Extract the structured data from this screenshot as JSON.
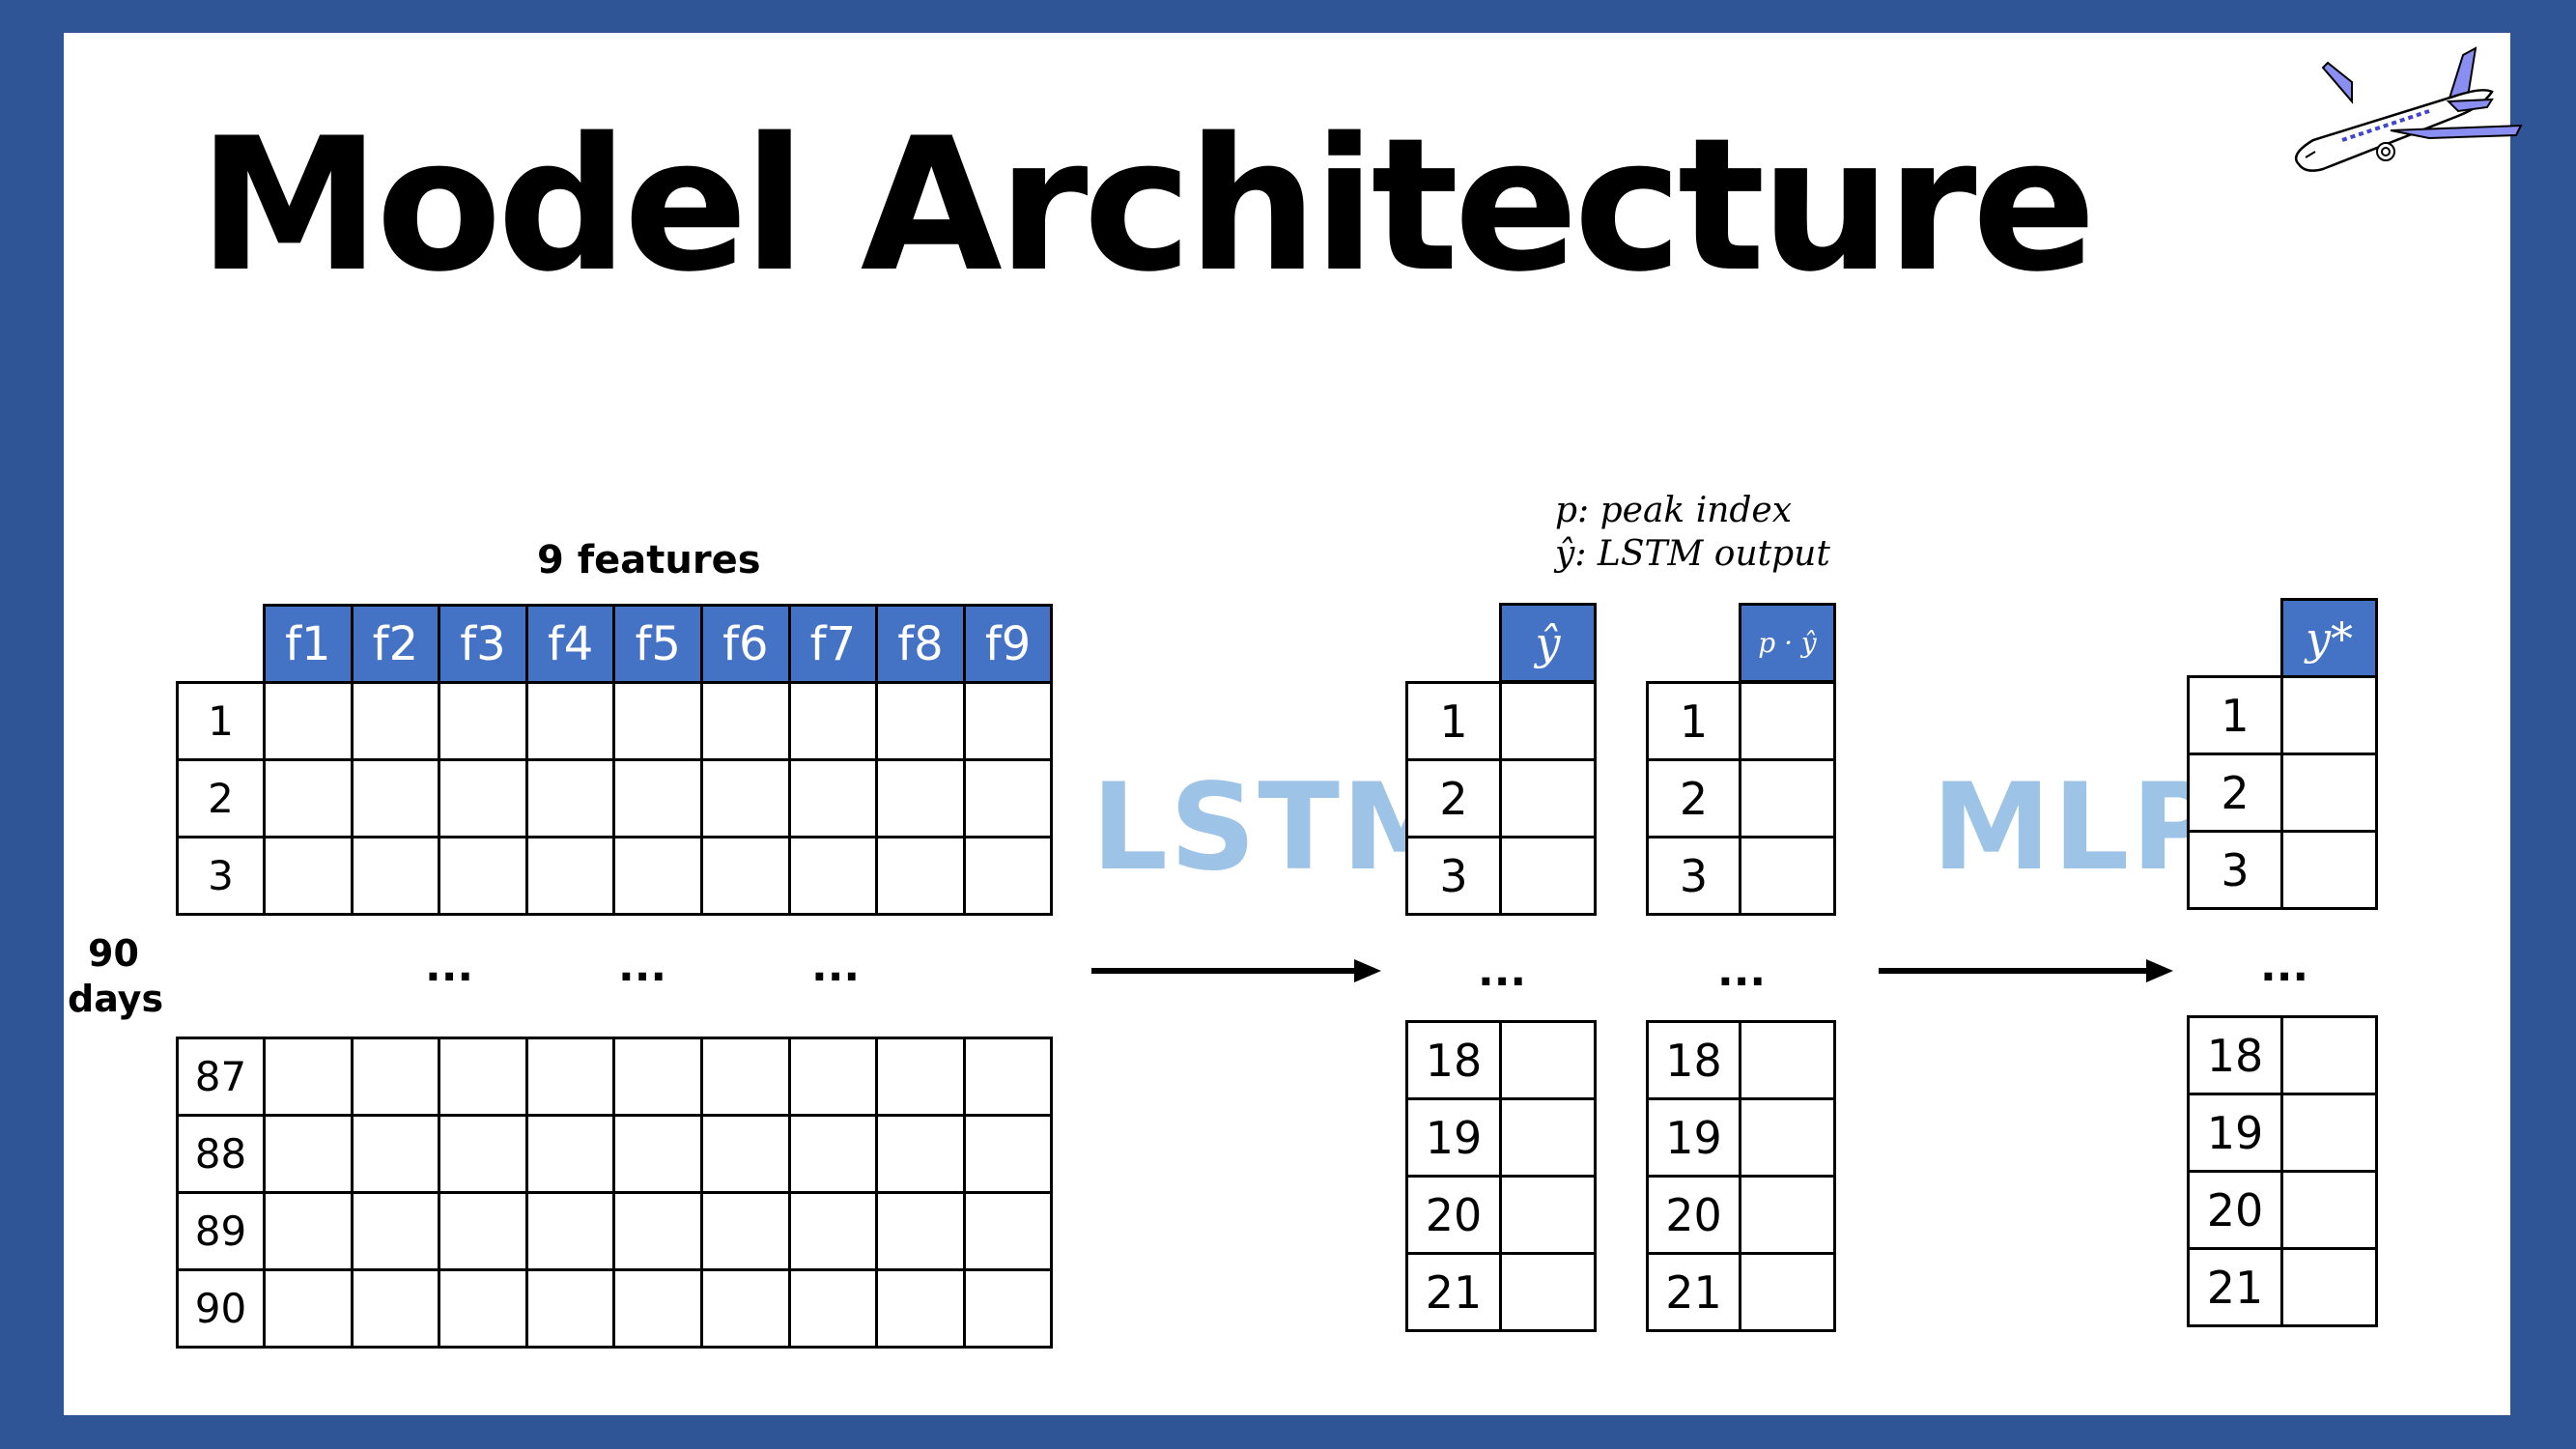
{
  "slide": {
    "title": "Model Architecture",
    "frame_color": "#2f5597",
    "header_color": "#4472c4",
    "label_color": "#9dc3e6"
  },
  "input_table": {
    "caption": "9 features",
    "row_axis_label_line1": "90",
    "row_axis_label_line2": "days",
    "columns": [
      "f1",
      "f2",
      "f3",
      "f4",
      "f5",
      "f6",
      "f7",
      "f8",
      "f9"
    ],
    "top_rows": [
      "1",
      "2",
      "3"
    ],
    "bottom_rows": [
      "87",
      "88",
      "89",
      "90"
    ],
    "ellipsis": [
      "...",
      "...",
      "..."
    ]
  },
  "lstm_label": "LSTM",
  "mlp_label": "MLP",
  "legend": {
    "line1": "p: peak index",
    "line2": "ŷ: LSTM output"
  },
  "output_tables": [
    {
      "header": "ŷ",
      "top_rows": [
        "1",
        "2",
        "3"
      ],
      "ellipsis": "...",
      "bottom_rows": [
        "18",
        "19",
        "20",
        "21"
      ]
    },
    {
      "header": "p · ŷ",
      "top_rows": [
        "1",
        "2",
        "3"
      ],
      "ellipsis": "...",
      "bottom_rows": [
        "18",
        "19",
        "20",
        "21"
      ]
    },
    {
      "header": "y*",
      "top_rows": [
        "1",
        "2",
        "3"
      ],
      "ellipsis": "...",
      "bottom_rows": [
        "18",
        "19",
        "20",
        "21"
      ]
    }
  ],
  "icons": {
    "airplane": "airplane-icon",
    "arrow": "arrow-right-icon"
  }
}
